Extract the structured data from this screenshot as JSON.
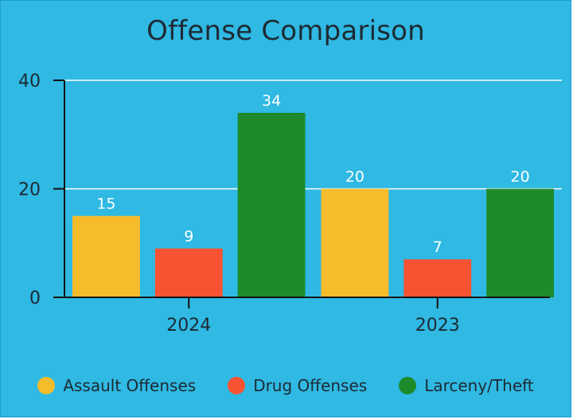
{
  "chart_data": {
    "type": "bar",
    "title": "Offense Comparison",
    "categories": [
      "2024",
      "2023"
    ],
    "series": [
      {
        "name": "Assault Offenses",
        "values": [
          15,
          20
        ],
        "color": "#F7BC2B"
      },
      {
        "name": "Drug Offenses",
        "values": [
          9,
          7
        ],
        "color": "#F75332"
      },
      {
        "name": "Larceny/Theft",
        "values": [
          34,
          20
        ],
        "color": "#1E8B2B"
      }
    ],
    "xlabel": "",
    "ylabel": "",
    "ylim": [
      0,
      40
    ],
    "yticks": [
      0,
      20,
      40
    ],
    "grid": true,
    "legend_position": "bottom",
    "data_labels": true,
    "background_color": "#2FB9E3",
    "gridline_color": "#ffffff"
  }
}
